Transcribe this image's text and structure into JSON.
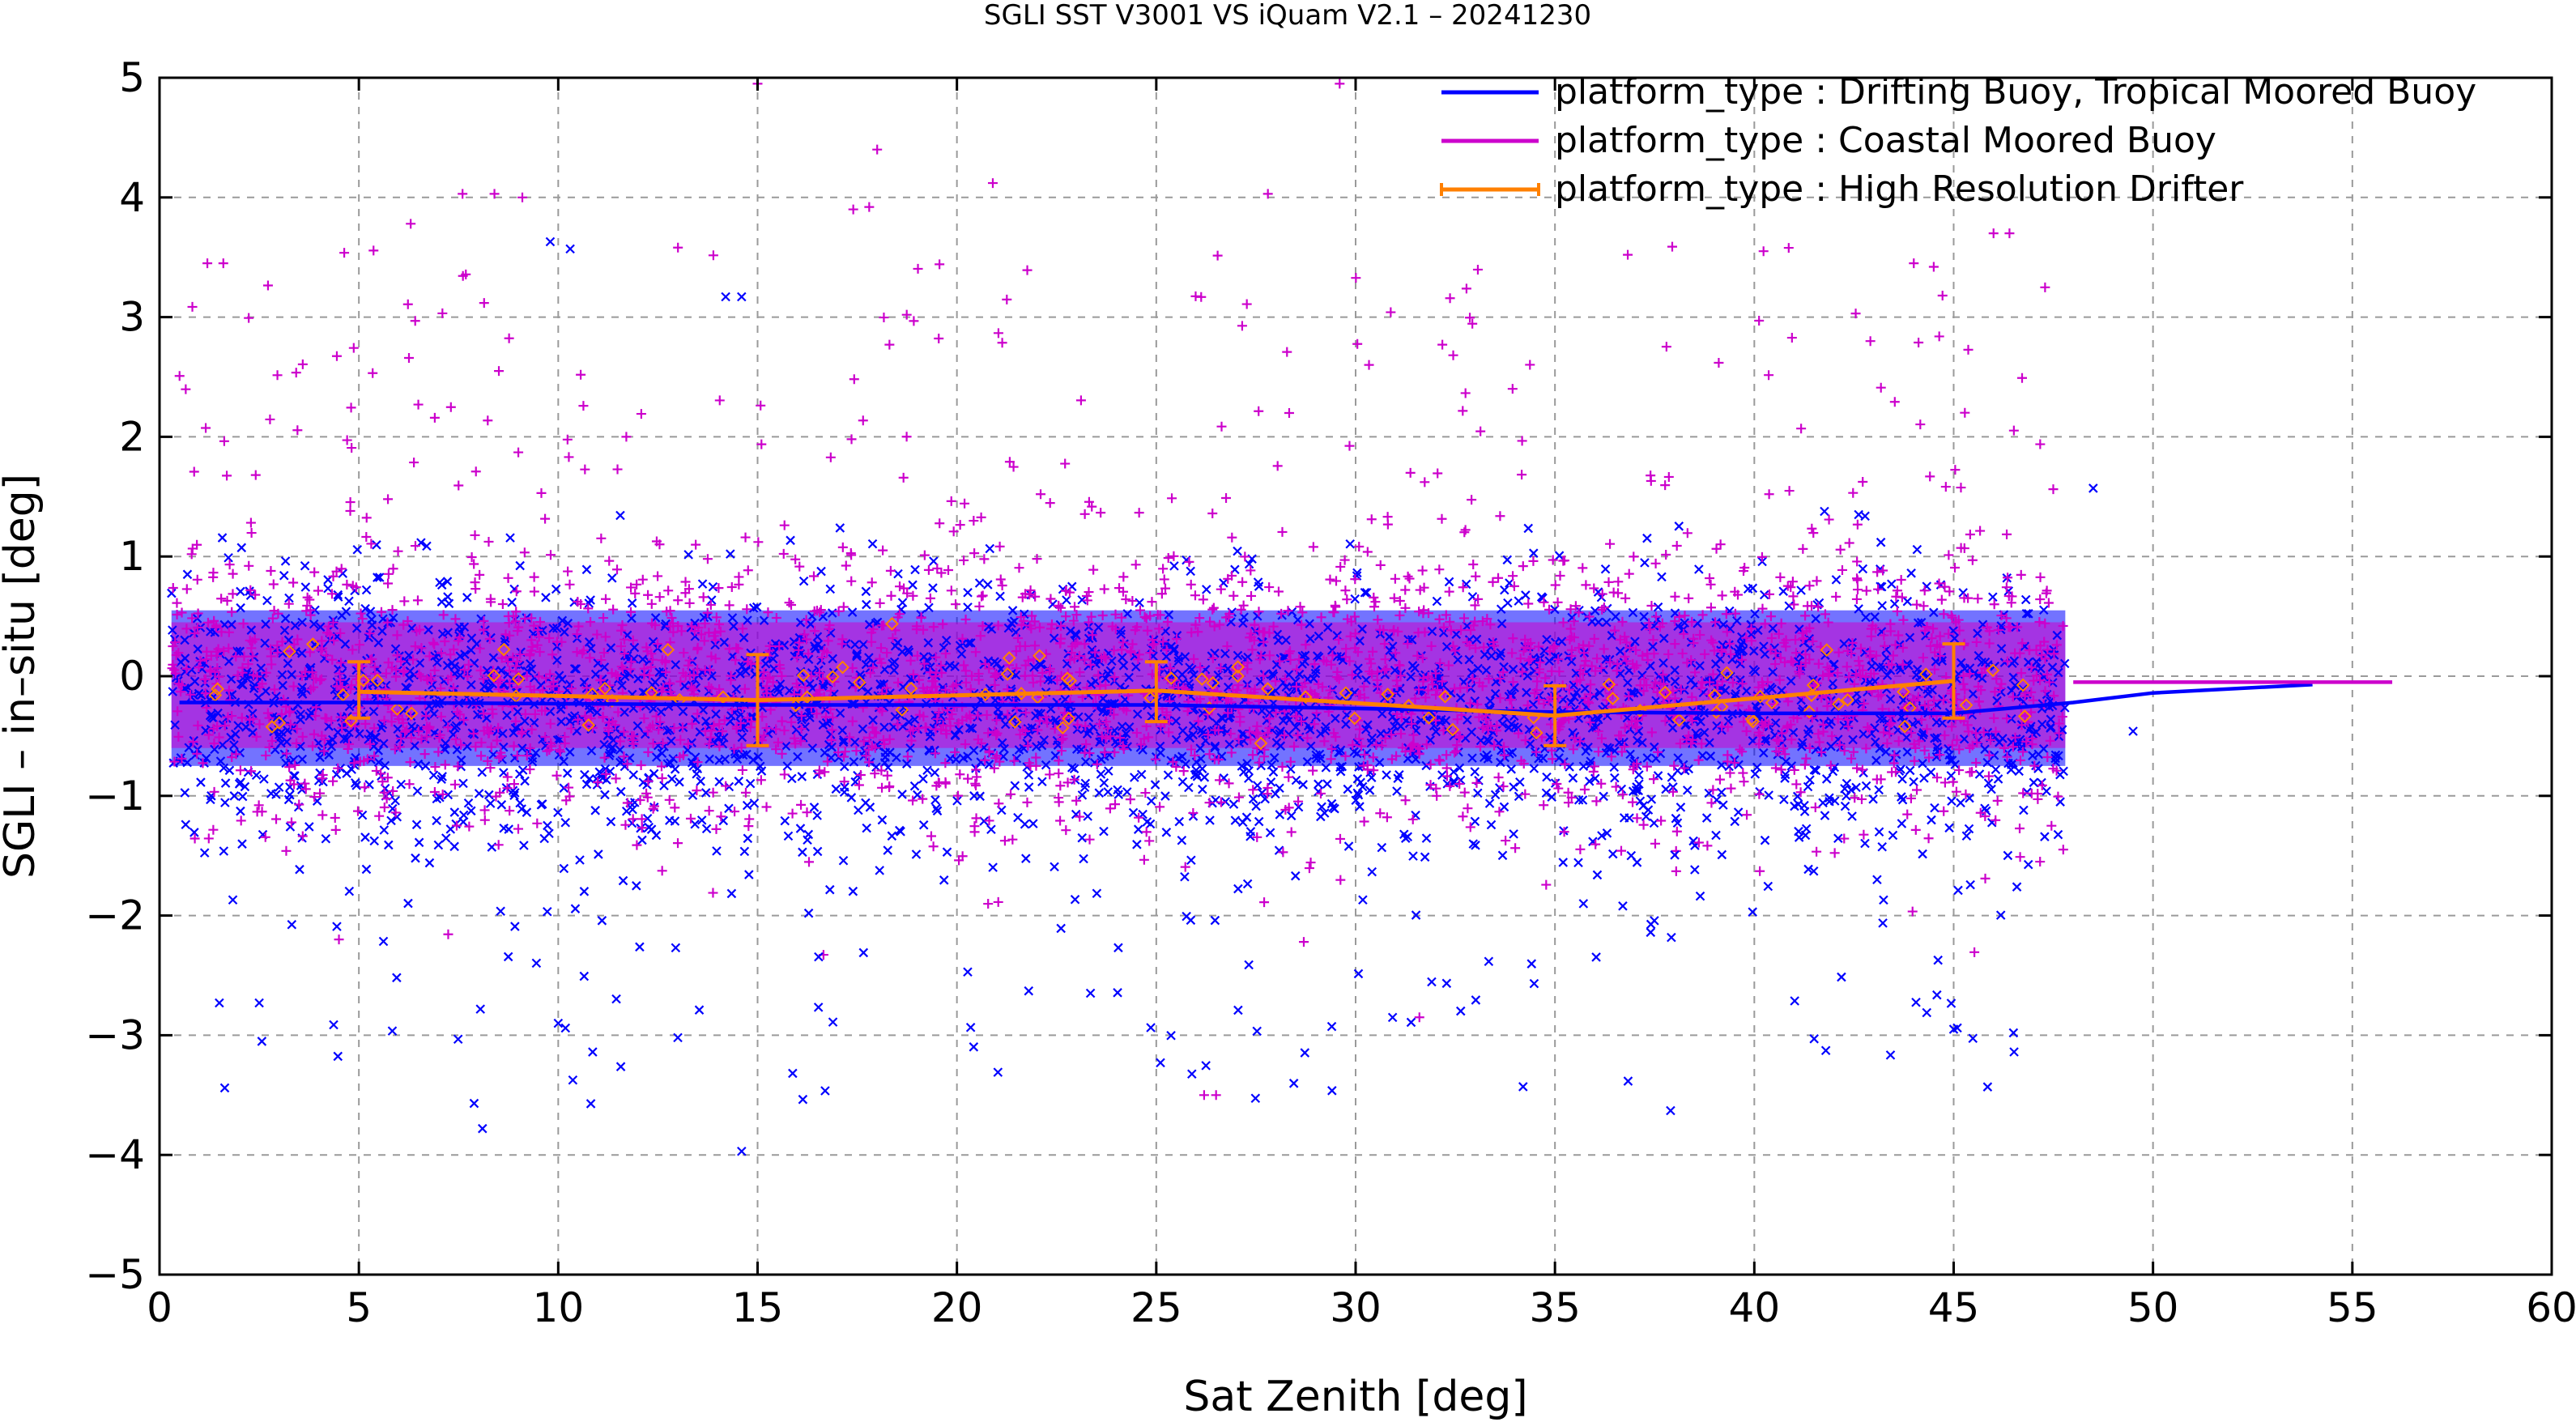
{
  "chart_data": {
    "type": "scatter",
    "title": "SGLI SST V3001 VS iQuam V2.1  – 20241230",
    "xlabel": "Sat Zenith [deg]",
    "ylabel": "SGLI – in–situ [deg]",
    "xlim": [
      0,
      60
    ],
    "ylim": [
      -5,
      5
    ],
    "x_ticks": [
      0,
      5,
      10,
      15,
      20,
      25,
      30,
      35,
      40,
      45,
      50,
      55,
      60
    ],
    "y_ticks": [
      -5,
      -4,
      -3,
      -2,
      -1,
      0,
      1,
      2,
      3,
      4,
      5
    ],
    "x_tick_labels": [
      "0",
      "5",
      "10",
      "15",
      "20",
      "25",
      "30",
      "35",
      "40",
      "45",
      "50",
      "55",
      "60"
    ],
    "y_tick_labels": [
      "−5",
      "−4",
      "−3",
      "−2",
      "−1",
      "0",
      "1",
      "2",
      "3",
      "4",
      "5"
    ],
    "grid": true,
    "legend_position": "top-right",
    "scatter_cloud": {
      "x_range": [
        0.3,
        47.8
      ],
      "core_spread": [
        -0.75,
        0.55
      ],
      "outer_spread": [
        -1.8,
        2.2
      ],
      "marker_sizes_note": "dense clouds of x and + markers"
    },
    "series": [
      {
        "name": "platform_type : Drifting Buoy, Tropical Moored Buoy",
        "color": "#0000ff",
        "marker": "x",
        "mean_line": {
          "x": [
            0.5,
            5,
            10,
            15,
            20,
            25,
            30,
            35,
            40,
            45,
            48,
            50,
            54
          ],
          "y": [
            -0.22,
            -0.22,
            -0.23,
            -0.24,
            -0.24,
            -0.24,
            -0.27,
            -0.3,
            -0.31,
            -0.31,
            -0.22,
            -0.14,
            -0.07
          ]
        }
      },
      {
        "name": "platform_type : Coastal Moored Buoy",
        "color": "#cc00cc",
        "marker": "+",
        "mean_line": {
          "x": [
            48,
            50,
            52,
            54,
            56
          ],
          "y": [
            -0.05,
            -0.05,
            -0.05,
            -0.05,
            -0.05
          ]
        }
      },
      {
        "name": "platform_type : High Resolution Drifter",
        "color": "#ff8000",
        "marker": "diamond",
        "mean_line": {
          "x": [
            5,
            15,
            25,
            35,
            45
          ],
          "y": [
            -0.13,
            -0.2,
            -0.12,
            -0.33,
            -0.04
          ]
        },
        "error_bars": {
          "x": [
            5,
            15,
            25,
            35,
            45
          ],
          "low": [
            -0.35,
            -0.58,
            -0.38,
            -0.58,
            -0.35
          ],
          "high": [
            0.12,
            0.18,
            0.12,
            -0.08,
            0.27
          ]
        }
      }
    ],
    "sample_points": [
      {
        "series": 0,
        "x": 8.1,
        "y": -3.78
      },
      {
        "series": 0,
        "x": 14.6,
        "y": -3.97
      },
      {
        "series": 0,
        "x": 37.9,
        "y": -3.63
      },
      {
        "series": 0,
        "x": 34.2,
        "y": -3.43
      },
      {
        "series": 0,
        "x": 13.0,
        "y": -3.02
      },
      {
        "series": 0,
        "x": 10.0,
        "y": -2.9
      },
      {
        "series": 0,
        "x": 1.5,
        "y": -2.73
      },
      {
        "series": 0,
        "x": 2.5,
        "y": -2.73
      },
      {
        "series": 0,
        "x": 21.8,
        "y": -2.63
      },
      {
        "series": 0,
        "x": 41.5,
        "y": -3.03
      },
      {
        "series": 0,
        "x": 45.0,
        "y": -2.95
      },
      {
        "series": 0,
        "x": 46.5,
        "y": -2.98
      },
      {
        "series": 0,
        "x": 9.8,
        "y": 3.63
      },
      {
        "series": 0,
        "x": 10.3,
        "y": 3.57
      },
      {
        "series": 0,
        "x": 14.2,
        "y": 3.17
      },
      {
        "series": 0,
        "x": 14.6,
        "y": 3.17
      },
      {
        "series": 0,
        "x": 48.5,
        "y": 1.57
      },
      {
        "series": 0,
        "x": 49.5,
        "y": -0.46
      },
      {
        "series": 1,
        "x": 15.0,
        "y": 4.95
      },
      {
        "series": 1,
        "x": 29.6,
        "y": 4.95
      },
      {
        "series": 1,
        "x": 18.0,
        "y": 4.4
      },
      {
        "series": 1,
        "x": 20.9,
        "y": 4.12
      },
      {
        "series": 1,
        "x": 7.6,
        "y": 4.03
      },
      {
        "series": 1,
        "x": 8.4,
        "y": 4.03
      },
      {
        "series": 1,
        "x": 9.1,
        "y": 4.0
      },
      {
        "series": 1,
        "x": 27.8,
        "y": 4.03
      },
      {
        "series": 1,
        "x": 17.4,
        "y": 3.9
      },
      {
        "series": 1,
        "x": 17.8,
        "y": 3.92
      },
      {
        "series": 1,
        "x": 6.3,
        "y": 3.78
      },
      {
        "series": 1,
        "x": 1.2,
        "y": 3.45
      },
      {
        "series": 1,
        "x": 1.6,
        "y": 3.45
      },
      {
        "series": 1,
        "x": 26.2,
        "y": -3.5
      },
      {
        "series": 1,
        "x": 26.5,
        "y": -3.5
      },
      {
        "series": 1,
        "x": 31.6,
        "y": -2.85
      },
      {
        "series": 1,
        "x": 28.7,
        "y": -2.22
      },
      {
        "series": 1,
        "x": 4.5,
        "y": -2.2
      },
      {
        "series": 1,
        "x": 44.0,
        "y": 3.45
      },
      {
        "series": 1,
        "x": 44.5,
        "y": 3.42
      },
      {
        "series": 1,
        "x": 46.0,
        "y": 3.7
      },
      {
        "series": 1,
        "x": 46.4,
        "y": 3.7
      }
    ]
  }
}
